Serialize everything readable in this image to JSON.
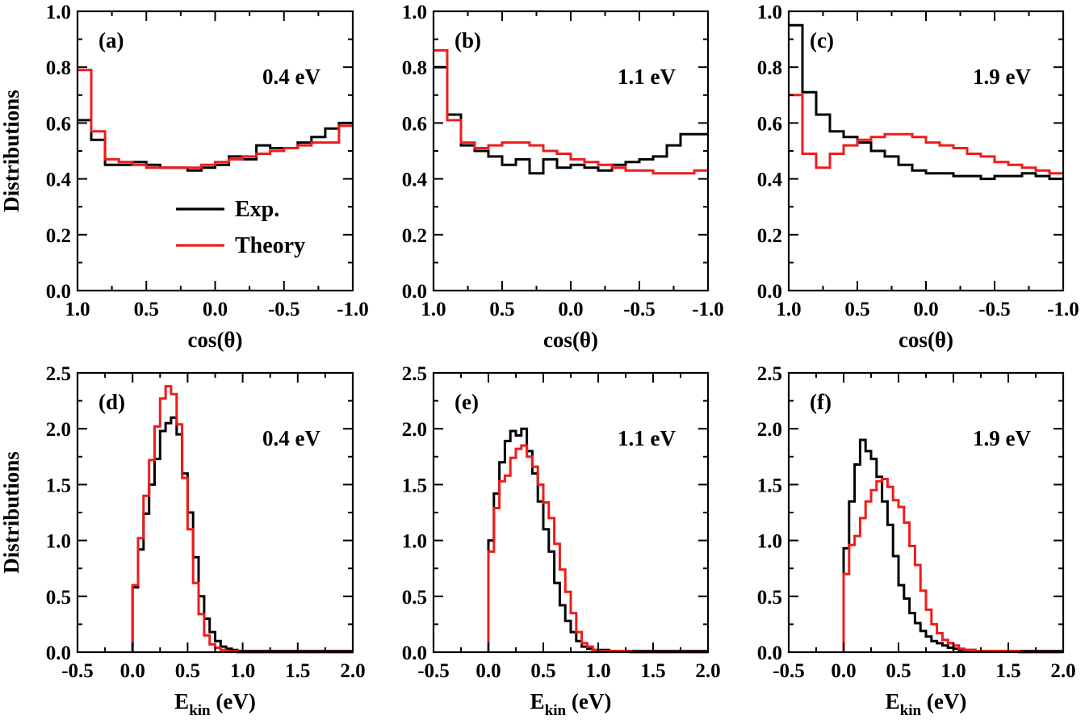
{
  "colors": {
    "exp": "#000000",
    "theory": "#ee1c1c"
  },
  "legend": {
    "items": [
      "Exp.",
      "Theory"
    ],
    "placement": "panel (a), lower-left"
  },
  "chart_data": [
    {
      "panel": "(a)",
      "energy": "0.4 eV",
      "type": "line",
      "step": true,
      "xlabel": "cos(θ)",
      "ylabel": "Distributions",
      "xlim": [
        1.0,
        -1.0
      ],
      "ylim": [
        0.0,
        1.0
      ],
      "xticks": [
        "1.0",
        "0.5",
        "0.0",
        "-0.5",
        "-1.0"
      ],
      "yticks": [
        "0.0",
        "0.2",
        "0.4",
        "0.6",
        "0.8",
        "1.0"
      ],
      "x_edges": [
        1.0,
        0.9,
        0.8,
        0.7,
        0.6,
        0.5,
        0.4,
        0.3,
        0.2,
        0.1,
        0.0,
        -0.1,
        -0.2,
        -0.3,
        -0.4,
        -0.5,
        -0.6,
        -0.7,
        -0.8,
        -0.9,
        -1.0
      ],
      "series": [
        {
          "name": "Exp.",
          "values": [
            0.61,
            0.54,
            0.45,
            0.45,
            0.46,
            0.45,
            0.44,
            0.44,
            0.43,
            0.44,
            0.45,
            0.48,
            0.47,
            0.52,
            0.51,
            0.51,
            0.53,
            0.55,
            0.58,
            0.6
          ]
        },
        {
          "name": "Theory",
          "values": [
            0.79,
            0.57,
            0.47,
            0.46,
            0.45,
            0.44,
            0.44,
            0.44,
            0.44,
            0.45,
            0.46,
            0.47,
            0.48,
            0.49,
            0.5,
            0.51,
            0.52,
            0.53,
            0.53,
            0.59
          ]
        }
      ]
    },
    {
      "panel": "(b)",
      "energy": "1.1 eV",
      "type": "line",
      "step": true,
      "xlabel": "cos(θ)",
      "ylabel": "",
      "xlim": [
        1.0,
        -1.0
      ],
      "ylim": [
        0.0,
        1.0
      ],
      "xticks": [
        "1.0",
        "0.5",
        "0.0",
        "-0.5",
        "-1.0"
      ],
      "yticks": [
        "0.0",
        "0.2",
        "0.4",
        "0.6",
        "0.8",
        "1.0"
      ],
      "x_edges": [
        1.0,
        0.9,
        0.8,
        0.7,
        0.6,
        0.5,
        0.4,
        0.3,
        0.2,
        0.1,
        0.0,
        -0.1,
        -0.2,
        -0.3,
        -0.4,
        -0.5,
        -0.6,
        -0.7,
        -0.8,
        -0.9,
        -1.0
      ],
      "series": [
        {
          "name": "Exp.",
          "values": [
            0.8,
            0.63,
            0.52,
            0.5,
            0.48,
            0.45,
            0.47,
            0.42,
            0.47,
            0.44,
            0.45,
            0.44,
            0.43,
            0.45,
            0.46,
            0.47,
            0.48,
            0.52,
            0.56,
            0.56
          ]
        },
        {
          "name": "Theory",
          "values": [
            0.86,
            0.61,
            0.53,
            0.51,
            0.52,
            0.53,
            0.53,
            0.52,
            0.5,
            0.49,
            0.47,
            0.46,
            0.45,
            0.44,
            0.43,
            0.43,
            0.42,
            0.42,
            0.42,
            0.43
          ]
        }
      ]
    },
    {
      "panel": "(c)",
      "energy": "1.9 eV",
      "type": "line",
      "step": true,
      "xlabel": "cos(θ)",
      "ylabel": "",
      "xlim": [
        1.0,
        -1.0
      ],
      "ylim": [
        0.0,
        1.0
      ],
      "xticks": [
        "1.0",
        "0.5",
        "0.0",
        "-0.5",
        "-1.0"
      ],
      "yticks": [
        "0.0",
        "0.2",
        "0.4",
        "0.6",
        "0.8",
        "1.0"
      ],
      "x_edges": [
        1.0,
        0.9,
        0.8,
        0.7,
        0.6,
        0.5,
        0.4,
        0.3,
        0.2,
        0.1,
        0.0,
        -0.1,
        -0.2,
        -0.3,
        -0.4,
        -0.5,
        -0.6,
        -0.7,
        -0.8,
        -0.9,
        -1.0
      ],
      "series": [
        {
          "name": "Exp.",
          "values": [
            0.95,
            0.71,
            0.63,
            0.57,
            0.55,
            0.53,
            0.5,
            0.48,
            0.45,
            0.43,
            0.42,
            0.42,
            0.41,
            0.41,
            0.4,
            0.41,
            0.41,
            0.42,
            0.41,
            0.4
          ]
        },
        {
          "name": "Theory",
          "values": [
            0.7,
            0.49,
            0.44,
            0.49,
            0.52,
            0.54,
            0.55,
            0.56,
            0.56,
            0.55,
            0.53,
            0.52,
            0.51,
            0.49,
            0.48,
            0.46,
            0.45,
            0.44,
            0.43,
            0.42
          ]
        }
      ]
    },
    {
      "panel": "(d)",
      "energy": "0.4 eV",
      "type": "line",
      "step": true,
      "xlabel": "E",
      "xlabel_sub": "kin",
      "xlabel_unit": "(eV)",
      "ylabel": "Distributions",
      "xlim": [
        -0.5,
        2.0
      ],
      "ylim": [
        0.0,
        2.5
      ],
      "xticks": [
        "-0.5",
        "0.0",
        "0.5",
        "1.0",
        "1.5",
        "2.0"
      ],
      "yticks": [
        "0.0",
        "0.5",
        "1.0",
        "1.5",
        "2.0",
        "2.5"
      ],
      "x_edges": [
        0.0,
        0.05,
        0.1,
        0.15,
        0.2,
        0.25,
        0.3,
        0.35,
        0.4,
        0.45,
        0.5,
        0.55,
        0.6,
        0.65,
        0.7,
        0.75,
        0.8,
        0.85,
        0.9,
        0.95,
        1.0,
        1.1,
        1.2,
        1.3,
        1.4,
        1.5,
        1.6,
        1.7,
        1.8,
        1.9,
        2.0
      ],
      "series": [
        {
          "name": "Exp.",
          "values": [
            0.58,
            0.92,
            1.24,
            1.5,
            1.73,
            1.98,
            2.05,
            2.1,
            1.95,
            1.6,
            1.25,
            0.85,
            0.5,
            0.3,
            0.18,
            0.1,
            0.05,
            0.03,
            0.02,
            0.01,
            0.01,
            0.01,
            0.01,
            0.01,
            0.01,
            0.01,
            0.01,
            0.01,
            0.01,
            0.01
          ]
        },
        {
          "name": "Theory",
          "values": [
            0.6,
            1.02,
            1.4,
            1.72,
            2.02,
            2.27,
            2.38,
            2.31,
            2.04,
            1.56,
            1.1,
            0.62,
            0.34,
            0.15,
            0.07,
            0.04,
            0.02,
            0.01,
            0.01,
            0.0,
            0.0,
            0.0,
            0.0,
            0.0,
            0.0,
            0.0,
            0.0,
            0.0,
            0.0,
            0.0
          ]
        }
      ]
    },
    {
      "panel": "(e)",
      "energy": "1.1 eV",
      "type": "line",
      "step": true,
      "xlabel": "E",
      "xlabel_sub": "kin",
      "xlabel_unit": "(eV)",
      "ylabel": "",
      "xlim": [
        -0.5,
        2.0
      ],
      "ylim": [
        0.0,
        2.5
      ],
      "xticks": [
        "-0.5",
        "0.0",
        "0.5",
        "1.0",
        "1.5",
        "2.0"
      ],
      "yticks": [
        "0.0",
        "0.5",
        "1.0",
        "1.5",
        "2.0",
        "2.5"
      ],
      "x_edges": [
        0.0,
        0.05,
        0.1,
        0.15,
        0.2,
        0.25,
        0.3,
        0.35,
        0.4,
        0.45,
        0.5,
        0.55,
        0.6,
        0.65,
        0.7,
        0.75,
        0.8,
        0.85,
        0.9,
        0.95,
        1.0,
        1.1,
        1.2,
        1.3,
        1.4,
        1.5,
        1.6,
        1.7,
        1.8,
        1.9,
        2.0
      ],
      "series": [
        {
          "name": "Exp.",
          "values": [
            1.0,
            1.42,
            1.7,
            1.89,
            1.98,
            1.94,
            2.0,
            1.8,
            1.6,
            1.35,
            1.1,
            0.9,
            0.62,
            0.42,
            0.28,
            0.18,
            0.1,
            0.05,
            0.03,
            0.02,
            0.02,
            0.01,
            0.01,
            0.01,
            0.01,
            0.01,
            0.01,
            0.01,
            0.01,
            0.01
          ]
        },
        {
          "name": "Theory",
          "values": [
            0.9,
            1.29,
            1.53,
            1.58,
            1.74,
            1.82,
            1.85,
            1.75,
            1.66,
            1.5,
            1.34,
            1.2,
            0.97,
            0.74,
            0.54,
            0.35,
            0.18,
            0.08,
            0.05,
            0.02,
            0.01,
            0.01,
            0.01,
            0.0,
            0.0,
            0.0,
            0.0,
            0.0,
            0.0,
            0.0
          ]
        }
      ]
    },
    {
      "panel": "(f)",
      "energy": "1.9 eV",
      "type": "line",
      "step": true,
      "xlabel": "E",
      "xlabel_sub": "kin",
      "xlabel_unit": "(eV)",
      "ylabel": "",
      "xlim": [
        -0.5,
        2.0
      ],
      "ylim": [
        0.0,
        2.5
      ],
      "xticks": [
        "-0.5",
        "0.0",
        "0.5",
        "1.0",
        "1.5",
        "2.0"
      ],
      "yticks": [
        "0.0",
        "0.5",
        "1.0",
        "1.5",
        "2.0",
        "2.5"
      ],
      "x_edges": [
        0.0,
        0.05,
        0.1,
        0.15,
        0.2,
        0.25,
        0.3,
        0.35,
        0.4,
        0.45,
        0.5,
        0.55,
        0.6,
        0.65,
        0.7,
        0.75,
        0.8,
        0.85,
        0.9,
        0.95,
        1.0,
        1.05,
        1.1,
        1.2,
        1.3,
        1.4,
        1.5,
        1.6,
        1.7,
        1.8,
        1.9,
        2.0
      ],
      "series": [
        {
          "name": "Exp.",
          "values": [
            0.93,
            1.35,
            1.68,
            1.9,
            1.8,
            1.73,
            1.57,
            1.35,
            1.14,
            0.86,
            0.6,
            0.48,
            0.35,
            0.26,
            0.19,
            0.14,
            0.1,
            0.08,
            0.06,
            0.04,
            0.03,
            0.02,
            0.02,
            0.01,
            0.01,
            0.01,
            0.01,
            0.01,
            0.01,
            0.01,
            0.01
          ]
        },
        {
          "name": "Theory",
          "values": [
            0.7,
            0.96,
            1.04,
            1.2,
            1.35,
            1.45,
            1.53,
            1.55,
            1.48,
            1.36,
            1.3,
            1.16,
            0.95,
            0.78,
            0.55,
            0.38,
            0.25,
            0.17,
            0.11,
            0.08,
            0.06,
            0.03,
            0.02,
            0.01,
            0.01,
            0.01,
            0.01,
            0.0,
            0.0,
            0.0,
            0.0
          ]
        }
      ]
    }
  ]
}
